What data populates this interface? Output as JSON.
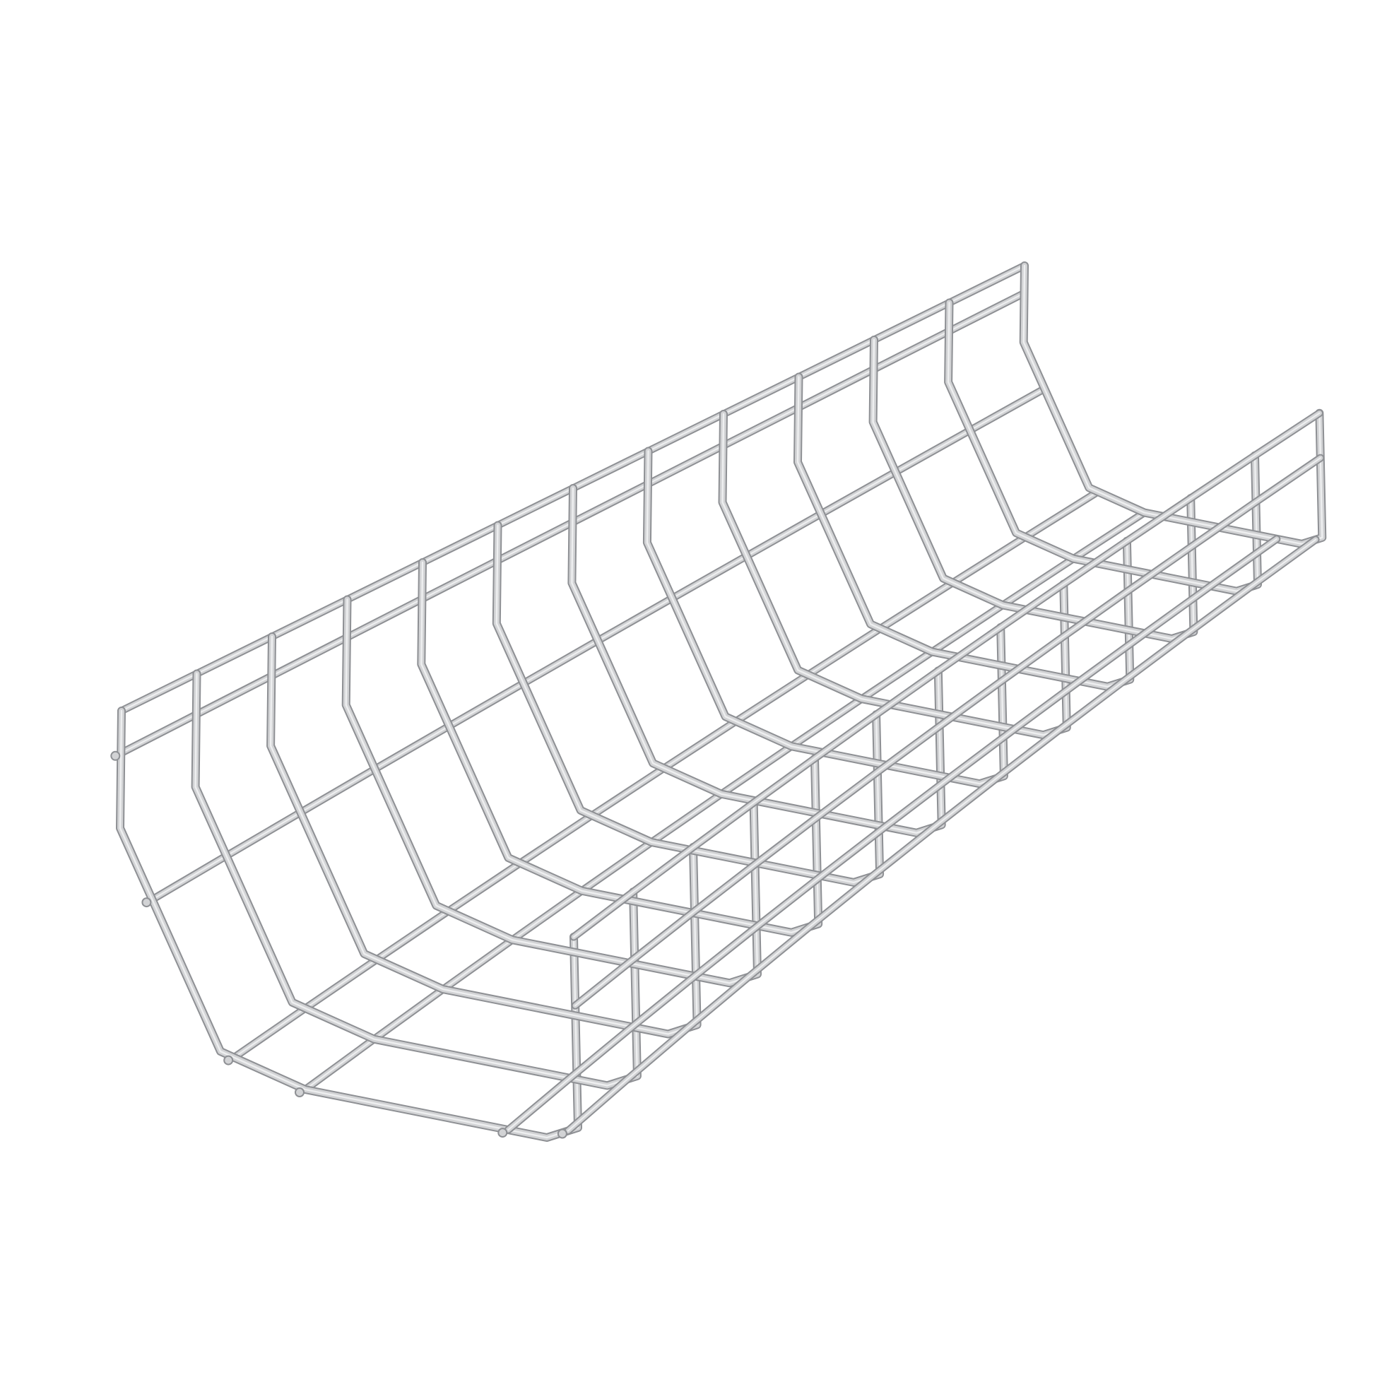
{
  "image": {
    "subject": "wire-mesh-cable-tray",
    "colors": {
      "background": "#ffffff",
      "wire_outline": "#8e9094",
      "wire_body": "#d2d3d5",
      "wire_highlight": "#eeeff0"
    }
  }
}
